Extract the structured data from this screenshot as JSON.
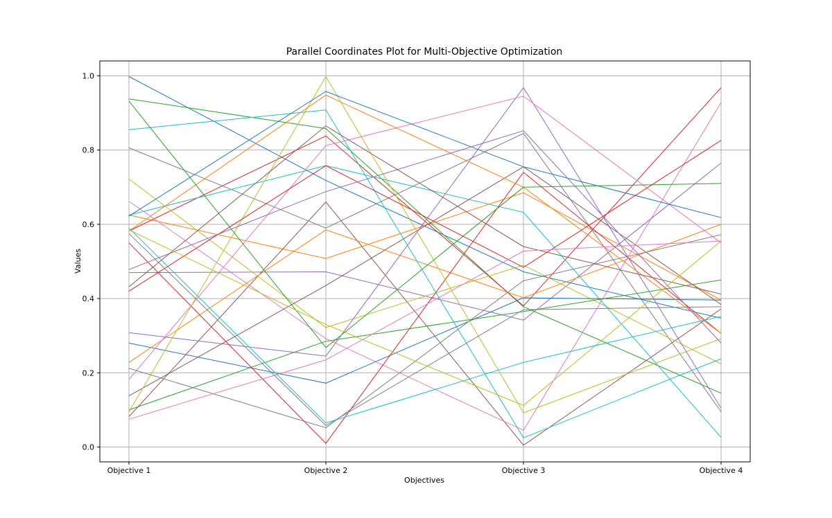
{
  "chart_data": {
    "type": "line",
    "title": "Parallel Coordinates Plot for Multi-Objective Optimization",
    "xlabel": "Objectives",
    "ylabel": "Values",
    "categories": [
      "Objective 1",
      "Objective 2",
      "Objective 3",
      "Objective 4"
    ],
    "ylim": [
      -0.04,
      1.04
    ],
    "yticks": [
      "0.0",
      "0.2",
      "0.4",
      "0.6",
      "0.8",
      "1.0"
    ],
    "grid": true,
    "palette": [
      "#1f77b4",
      "#ff7f0e",
      "#2ca02c",
      "#d62728",
      "#9467bd",
      "#8c564b",
      "#e377c2",
      "#7f7f7f",
      "#bcbd22",
      "#17becf"
    ],
    "series": [
      {
        "values": [
          0.998,
          0.718,
          0.472,
          0.347
        ]
      },
      {
        "values": [
          0.625,
          0.508,
          0.685,
          0.396
        ]
      },
      {
        "values": [
          0.938,
          0.858,
          0.378,
          0.145
        ]
      },
      {
        "values": [
          0.582,
          0.838,
          0.38,
          0.968
        ]
      },
      {
        "values": [
          0.47,
          0.472,
          0.342,
          0.765
        ]
      },
      {
        "values": [
          0.082,
          0.66,
          0.005,
          0.372
        ]
      },
      {
        "values": [
          0.662,
          0.292,
          0.045,
          0.928
        ]
      },
      {
        "values": [
          0.806,
          0.59,
          0.845,
          0.095
        ]
      },
      {
        "values": [
          0.722,
          0.322,
          0.49,
          0.224
        ]
      },
      {
        "values": [
          0.625,
          0.758,
          0.632,
          0.026
        ]
      },
      {
        "values": [
          0.28,
          0.172,
          0.402,
          0.396
        ]
      },
      {
        "values": [
          0.228,
          0.585,
          0.402,
          0.6
        ]
      },
      {
        "values": [
          0.1,
          0.285,
          0.365,
          0.45
        ]
      },
      {
        "values": [
          0.55,
          0.01,
          0.74,
          0.306
        ]
      },
      {
        "values": [
          0.308,
          0.245,
          0.968,
          0.105
        ]
      },
      {
        "values": [
          0.138,
          0.435,
          0.755,
          0.384
        ]
      },
      {
        "values": [
          0.182,
          0.812,
          0.945,
          0.55
        ]
      },
      {
        "values": [
          0.212,
          0.052,
          0.448,
          0.572
        ]
      },
      {
        "values": [
          0.095,
          0.998,
          0.092,
          0.292
        ]
      },
      {
        "values": [
          0.855,
          0.908,
          0.025,
          0.238
        ]
      },
      {
        "values": [
          0.622,
          0.958,
          0.755,
          0.618
        ]
      },
      {
        "values": [
          0.582,
          0.948,
          0.7,
          0.306
        ]
      },
      {
        "values": [
          0.932,
          0.268,
          0.7,
          0.71
        ]
      },
      {
        "values": [
          0.42,
          0.758,
          0.484,
          0.826
        ]
      },
      {
        "values": [
          0.478,
          0.688,
          0.852,
          0.28
        ]
      },
      {
        "values": [
          0.432,
          0.865,
          0.54,
          0.412
        ]
      },
      {
        "values": [
          0.075,
          0.235,
          0.528,
          0.555
        ]
      },
      {
        "values": [
          0.575,
          0.058,
          0.37,
          0.378
        ]
      },
      {
        "values": [
          0.585,
          0.33,
          0.112,
          0.555
        ]
      },
      {
        "values": [
          0.59,
          0.065,
          0.228,
          0.352
        ]
      }
    ]
  }
}
